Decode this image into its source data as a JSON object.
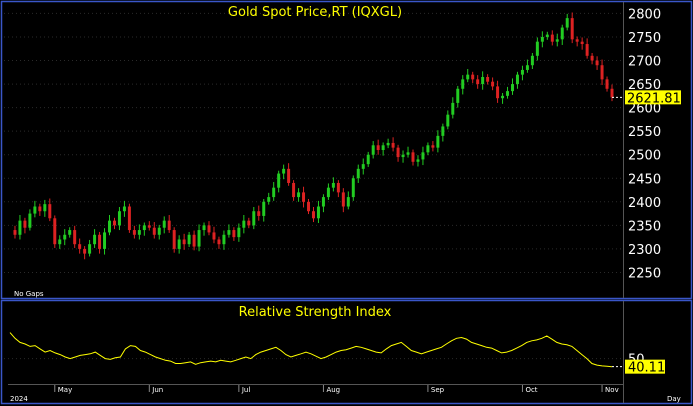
{
  "chart_data": [
    {
      "type": "candlestick",
      "title": "Gold Spot Price,RT (IQXGL)",
      "note": "No Gaps",
      "ylim": [
        2200,
        2820
      ],
      "yticks": [
        2250,
        2300,
        2350,
        2400,
        2450,
        2500,
        2550,
        2600,
        2650,
        2700,
        2750,
        2800
      ],
      "last_value": "2621.81",
      "colors": {
        "up": "#22cc22",
        "down": "#dd2222"
      },
      "series": [
        {
          "values": [
            2340,
            2330,
            2360,
            2345,
            2375,
            2390,
            2380,
            2395,
            2365,
            2310,
            2320,
            2330,
            2340,
            2310,
            2300,
            2290,
            2310,
            2330,
            2300,
            2335,
            2360,
            2350,
            2380,
            2390,
            2340,
            2330,
            2340,
            2350,
            2345,
            2330,
            2345,
            2360,
            2340,
            2300,
            2320,
            2310,
            2330,
            2305,
            2340,
            2350,
            2335,
            2320,
            2310,
            2330,
            2340,
            2325,
            2345,
            2360,
            2350,
            2380,
            2370,
            2400,
            2410,
            2430,
            2460,
            2470,
            2440,
            2410,
            2420,
            2400,
            2380,
            2365,
            2390,
            2410,
            2430,
            2440,
            2420,
            2390,
            2410,
            2450,
            2470,
            2480,
            2500,
            2520,
            2510,
            2520,
            2525,
            2515,
            2495,
            2500,
            2505,
            2485,
            2490,
            2505,
            2520,
            2515,
            2540,
            2560,
            2585,
            2610,
            2640,
            2660,
            2670,
            2660,
            2650,
            2665,
            2655,
            2645,
            2620,
            2625,
            2635,
            2650,
            2670,
            2680,
            2690,
            2710,
            2740,
            2750,
            2755,
            2740,
            2745,
            2770,
            2790,
            2745,
            2740,
            2735,
            2710,
            2700,
            2690,
            2660,
            2640,
            2621.81
          ]
        }
      ]
    },
    {
      "type": "line",
      "title": "Relative Strength Index",
      "ylim": [
        20,
        100
      ],
      "yticks": [
        50
      ],
      "last_value": "40.11",
      "x_labels": [
        "May",
        "Jun",
        "Jul",
        "Aug",
        "Sep",
        "Oct",
        "Nov"
      ],
      "x_year": "2024",
      "x_unit": "Day",
      "color": "#ffff00",
      "series": [
        {
          "values": [
            82,
            75,
            70,
            68,
            65,
            66,
            62,
            58,
            60,
            57,
            55,
            52,
            50,
            52,
            54,
            55,
            56,
            58,
            54,
            50,
            49,
            51,
            52,
            62,
            66,
            65,
            60,
            58,
            55,
            52,
            50,
            48,
            47,
            44,
            44,
            45,
            46,
            43,
            45,
            46,
            47,
            46,
            48,
            47,
            46,
            48,
            50,
            52,
            50,
            55,
            58,
            60,
            62,
            64,
            60,
            55,
            52,
            54,
            56,
            58,
            56,
            53,
            50,
            52,
            55,
            58,
            60,
            61,
            63,
            65,
            64,
            62,
            60,
            58,
            57,
            62,
            66,
            68,
            70,
            65,
            60,
            58,
            56,
            58,
            60,
            62,
            64,
            68,
            72,
            75,
            76,
            74,
            70,
            68,
            66,
            64,
            63,
            60,
            57,
            58,
            60,
            63,
            66,
            70,
            72,
            73,
            75,
            78,
            74,
            70,
            68,
            67,
            65,
            60,
            55,
            50,
            44,
            42,
            41,
            40.5,
            40.11
          ]
        }
      ]
    }
  ]
}
